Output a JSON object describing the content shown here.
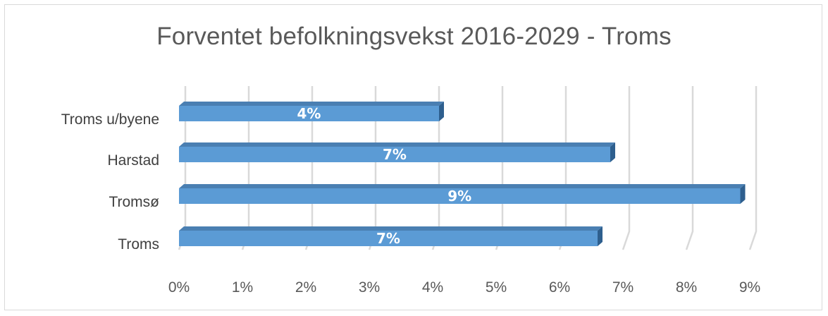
{
  "chart_data": {
    "type": "bar",
    "orientation": "horizontal",
    "title": "Forventet befolkningsvekst 2016-2029 - Troms",
    "categories": [
      "Troms u/byene",
      "Harstad",
      "Tromsø",
      "Troms"
    ],
    "values": [
      0.041,
      0.068,
      0.0885,
      0.066
    ],
    "data_labels": [
      "4%",
      "7%",
      "9%",
      "7%"
    ],
    "xlim": [
      0,
      0.09
    ],
    "x_ticks": [
      0,
      0.01,
      0.02,
      0.03,
      0.04,
      0.05,
      0.06,
      0.07,
      0.08,
      0.09
    ],
    "x_tick_labels": [
      "0%",
      "1%",
      "2%",
      "3%",
      "4%",
      "5%",
      "6%",
      "7%",
      "8%",
      "9%"
    ],
    "grid": true,
    "legend": "none",
    "colors": {
      "bar_front": "#5b9bd5",
      "bar_top": "#4a7fb2",
      "bar_side": "#2e5f8e",
      "gridline": "#d9d9d9",
      "text": "#595959",
      "data_label": "#ffffff"
    }
  }
}
